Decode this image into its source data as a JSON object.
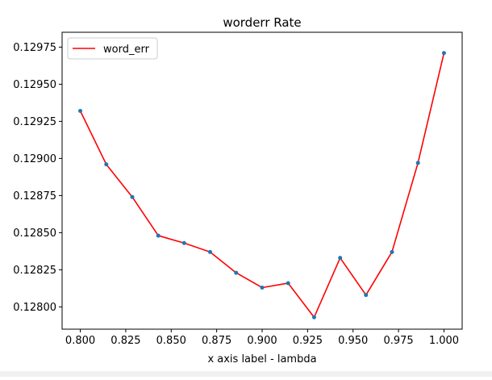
{
  "chart_data": {
    "type": "line",
    "title": "worderr Rate",
    "xlabel": "x axis label - lambda",
    "ylabel": "",
    "xlim": [
      0.79,
      1.01
    ],
    "ylim": [
      0.12785,
      0.12985
    ],
    "x_ticks": [
      0.8,
      0.825,
      0.85,
      0.875,
      0.9,
      0.925,
      0.95,
      0.975,
      1.0
    ],
    "x_tick_labels": [
      "0.800",
      "0.825",
      "0.850",
      "0.875",
      "0.900",
      "0.925",
      "0.950",
      "0.975",
      "1.000"
    ],
    "y_ticks": [
      0.128,
      0.12825,
      0.1285,
      0.12875,
      0.129,
      0.12925,
      0.1295,
      0.12975
    ],
    "y_tick_labels": [
      "0.12800",
      "0.12825",
      "0.12850",
      "0.12875",
      "0.12900",
      "0.12925",
      "0.12950",
      "0.12975"
    ],
    "grid": false,
    "legend_position": "upper-left",
    "x": [
      0.8,
      0.8143,
      0.8286,
      0.8429,
      0.8571,
      0.8714,
      0.8857,
      0.9,
      0.9143,
      0.9286,
      0.9429,
      0.9571,
      0.9714,
      0.9857,
      1.0
    ],
    "series": [
      {
        "name": "word_err",
        "color": "#ff0000",
        "marker_color": "#1f77b4",
        "values": [
          0.12932,
          0.12896,
          0.12874,
          0.12848,
          0.12843,
          0.12837,
          0.12823,
          0.12813,
          0.12816,
          0.12793,
          0.12833,
          0.12808,
          0.12837,
          0.12897,
          0.12971
        ]
      }
    ]
  }
}
